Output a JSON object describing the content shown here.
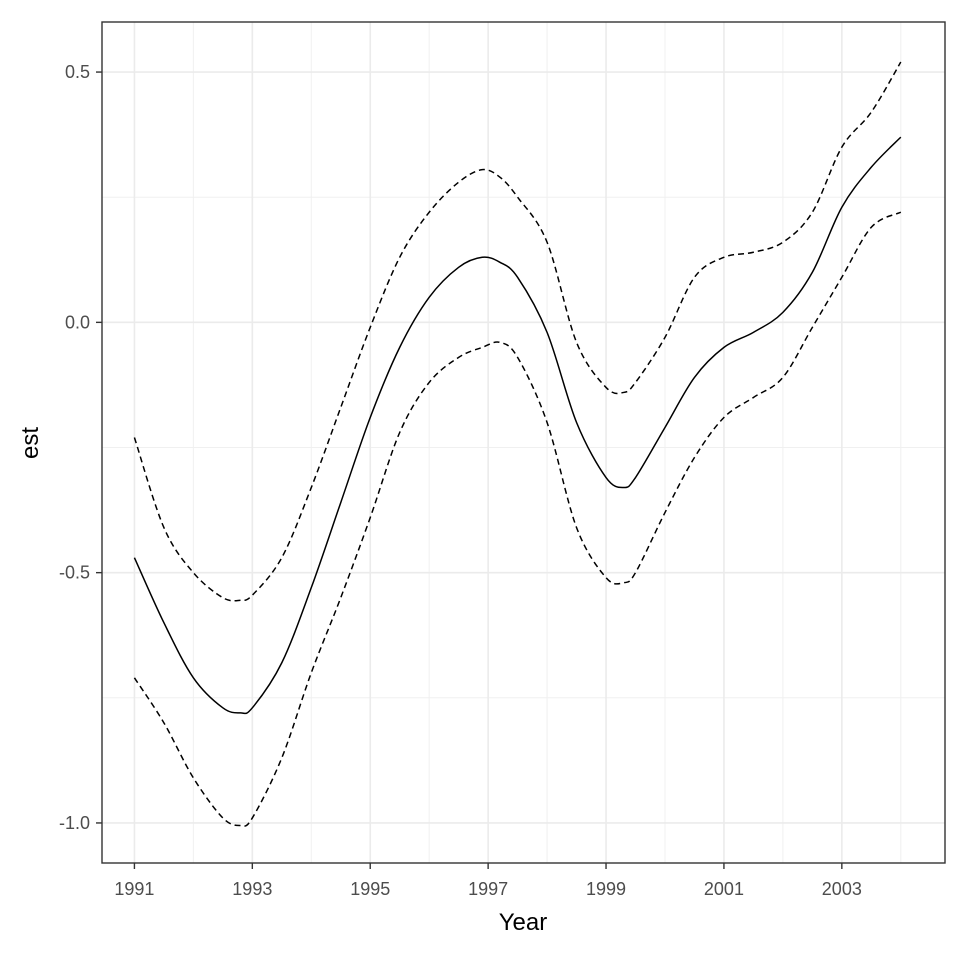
{
  "chart_data": {
    "type": "line",
    "xlabel": "Year",
    "ylabel": "est",
    "xlim": [
      1990.45,
      2004.75
    ],
    "ylim": [
      -1.08,
      0.6
    ],
    "x_ticks": [
      1991,
      1993,
      1995,
      1997,
      1999,
      2001,
      2003
    ],
    "x_tick_labels": [
      "1991",
      "1993",
      "1995",
      "1997",
      "1999",
      "2001",
      "2003"
    ],
    "x_minor_ticks": [
      1992,
      1994,
      1996,
      1998,
      2000,
      2002,
      2004
    ],
    "y_ticks": [
      -1.0,
      -0.5,
      0.0,
      0.5
    ],
    "y_tick_labels": [
      "-1.0",
      "-0.5",
      "0.0",
      "0.5"
    ],
    "y_minor_ticks": [
      -0.75,
      -0.25,
      0.25
    ],
    "grid": true,
    "series": [
      {
        "line_style": "solid",
        "color": "#000000",
        "x": [
          1991.0,
          1991.5,
          1992.0,
          1992.5,
          1992.8,
          1993.0,
          1993.5,
          1994.0,
          1994.5,
          1995.0,
          1995.5,
          1996.0,
          1996.5,
          1996.9,
          1997.2,
          1997.5,
          1998.0,
          1998.5,
          1999.0,
          1999.3,
          1999.5,
          2000.0,
          2000.5,
          2001.0,
          2001.5,
          2002.0,
          2002.5,
          2003.0,
          2003.5,
          2004.0
        ],
        "y": [
          -0.47,
          -0.6,
          -0.71,
          -0.77,
          -0.78,
          -0.77,
          -0.68,
          -0.53,
          -0.36,
          -0.19,
          -0.05,
          0.05,
          0.11,
          0.13,
          0.12,
          0.09,
          -0.02,
          -0.2,
          -0.31,
          -0.33,
          -0.31,
          -0.21,
          -0.11,
          -0.05,
          -0.02,
          0.02,
          0.1,
          0.23,
          0.31,
          0.37
        ]
      },
      {
        "line_style": "dashed",
        "color": "#000000",
        "x": [
          1991.0,
          1991.5,
          1992.0,
          1992.5,
          1992.8,
          1993.0,
          1993.5,
          1994.0,
          1994.5,
          1995.0,
          1995.5,
          1996.0,
          1996.5,
          1996.9,
          1997.2,
          1997.5,
          1998.0,
          1998.5,
          1999.0,
          1999.3,
          1999.5,
          2000.0,
          2000.5,
          2001.0,
          2001.5,
          2002.0,
          2002.5,
          2003.0,
          2003.5,
          2004.0
        ],
        "y": [
          -0.23,
          -0.41,
          -0.5,
          -0.55,
          -0.555,
          -0.545,
          -0.47,
          -0.33,
          -0.17,
          -0.01,
          0.13,
          0.22,
          0.28,
          0.305,
          0.29,
          0.25,
          0.16,
          -0.04,
          -0.13,
          -0.14,
          -0.12,
          -0.03,
          0.09,
          0.13,
          0.14,
          0.16,
          0.22,
          0.35,
          0.42,
          0.52
        ]
      },
      {
        "line_style": "dashed",
        "color": "#000000",
        "x": [
          1991.0,
          1991.5,
          1992.0,
          1992.5,
          1992.8,
          1993.0,
          1993.5,
          1994.0,
          1994.5,
          1995.0,
          1995.5,
          1996.0,
          1996.5,
          1996.9,
          1997.2,
          1997.5,
          1998.0,
          1998.5,
          1999.0,
          1999.3,
          1999.5,
          2000.0,
          2000.5,
          2001.0,
          2001.5,
          2002.0,
          2002.5,
          2003.0,
          2003.5,
          2004.0
        ],
        "y": [
          -0.71,
          -0.8,
          -0.91,
          -0.99,
          -1.005,
          -0.99,
          -0.87,
          -0.7,
          -0.55,
          -0.39,
          -0.22,
          -0.12,
          -0.07,
          -0.05,
          -0.04,
          -0.07,
          -0.2,
          -0.41,
          -0.51,
          -0.52,
          -0.5,
          -0.38,
          -0.27,
          -0.19,
          -0.15,
          -0.11,
          -0.01,
          0.09,
          0.19,
          0.22
        ]
      }
    ]
  }
}
